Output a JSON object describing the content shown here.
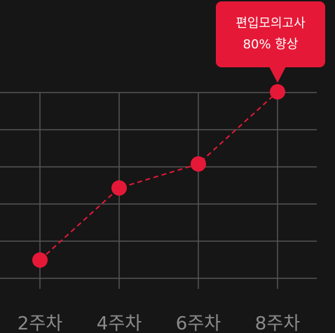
{
  "chart_data": {
    "type": "line",
    "categories": [
      "2주차",
      "4주차",
      "6주차",
      "8주차"
    ],
    "series": [
      {
        "values": [
          1,
          4,
          5,
          8
        ]
      }
    ],
    "ylim": [
      0,
      8.5
    ],
    "grid": true,
    "xlabel": "",
    "ylabel": "",
    "line_style": "dashed",
    "colors": {
      "line": "#e51937",
      "point": "#e51937",
      "grid": "#555555",
      "tick_label": "#8a8a8a",
      "background": "#161616"
    },
    "annotation": {
      "target": "8주차",
      "line1": "편입모의고사",
      "line2": "80% 향상"
    }
  }
}
